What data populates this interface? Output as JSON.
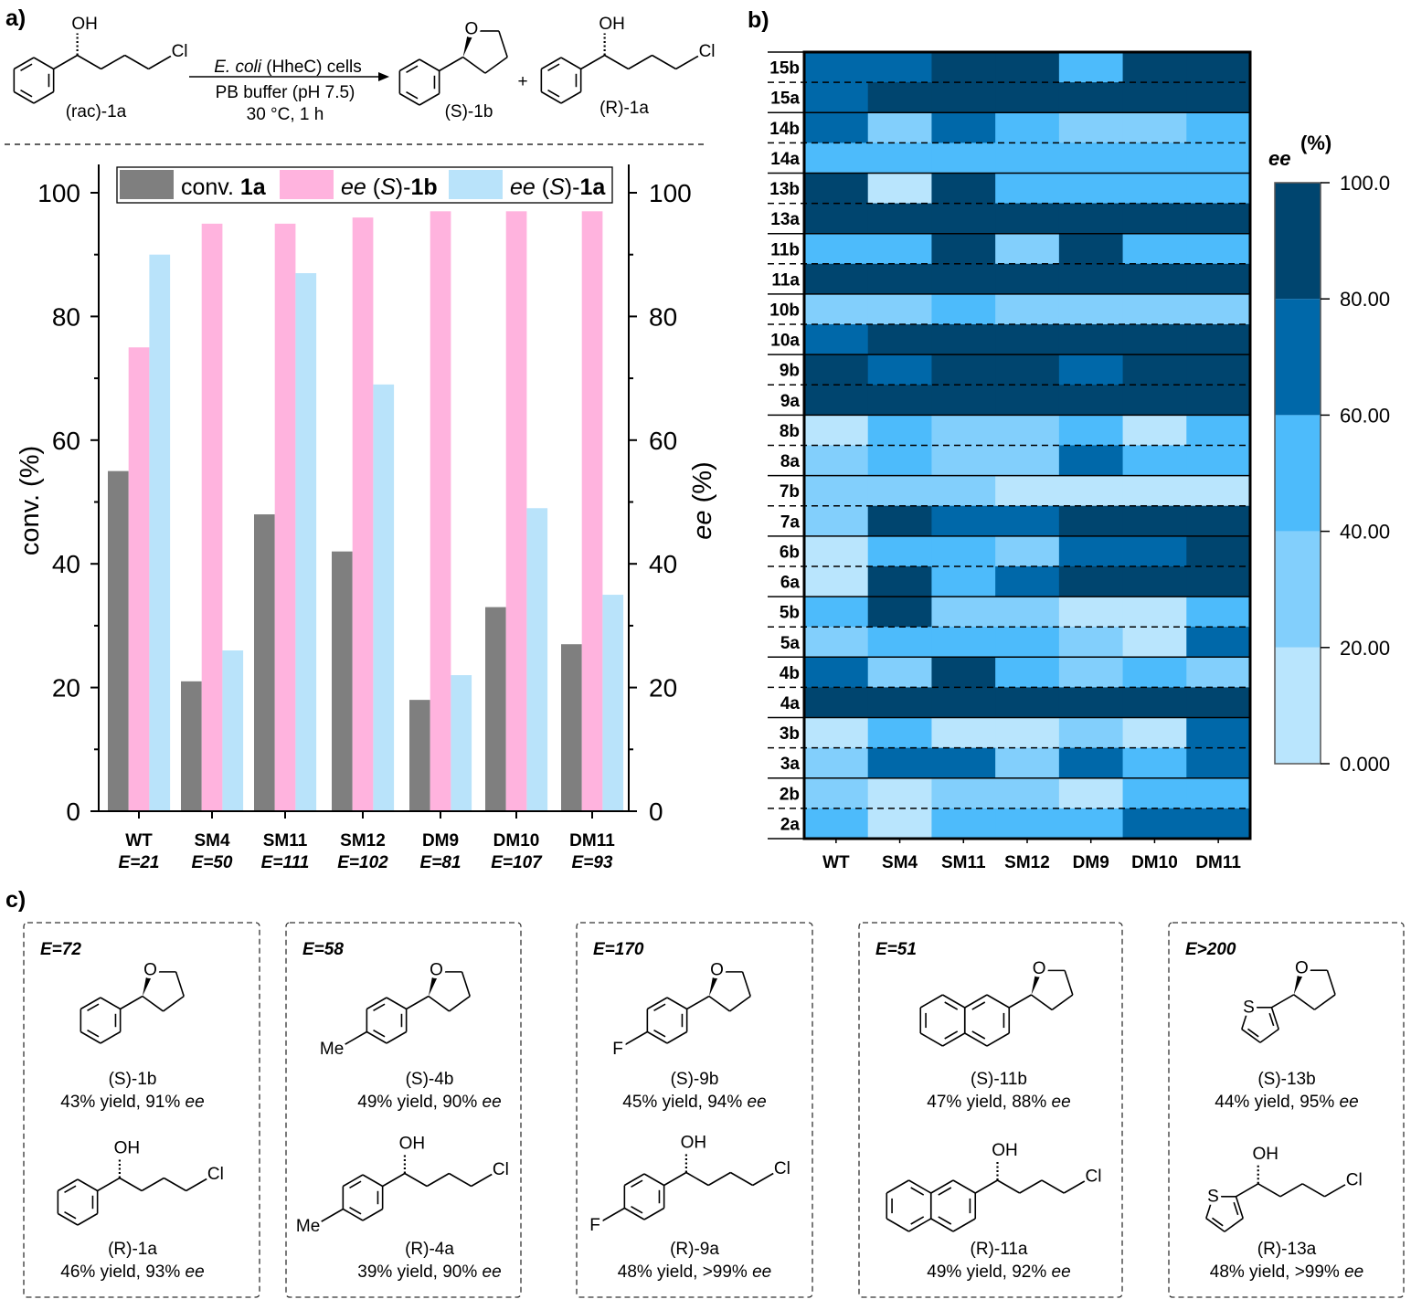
{
  "panel_labels": {
    "a": "a)",
    "b": "b)",
    "c": "c)"
  },
  "atoms": {
    "O": "O",
    "OH": "OH",
    "Cl": "Cl",
    "Me": "Me",
    "F": "F",
    "S": "S"
  },
  "scheme": {
    "conditions": [
      "E. coli (HheC) cells",
      "PB buffer (pH 7.5)",
      "30 °C, 1 h"
    ],
    "plus": "+",
    "substrate_label": "(rac)-1a",
    "product_label": "(S)-1b",
    "remaining_label": "(R)-1a"
  },
  "chart_data": [
    {
      "type": "bar",
      "categories": [
        "WT",
        "SM4",
        "SM11",
        "SM12",
        "DM9",
        "DM10",
        "DM11"
      ],
      "category_sublabels": [
        "E=21",
        "E=50",
        "E=111",
        "E=102",
        "E=81",
        "E=107",
        "E=93"
      ],
      "series": [
        {
          "name": "conv. 1a",
          "color": "#7f7f7f",
          "values": [
            55,
            21,
            48,
            42,
            18,
            33,
            27
          ]
        },
        {
          "name": "ee (S)-1b",
          "color": "#ffb3de",
          "values": [
            75,
            95,
            95,
            96,
            97,
            97,
            97
          ]
        },
        {
          "name": "ee (S)-1a",
          "color": "#b9e3fa",
          "values": [
            90,
            26,
            87,
            69,
            22,
            49,
            35
          ]
        }
      ],
      "ylabel": "conv. (%)",
      "y2label": "ee (%)",
      "ylim": [
        0,
        100
      ],
      "yticks": [
        "0",
        "20",
        "40",
        "60",
        "80",
        "100"
      ],
      "legend_position": "top",
      "grid": false
    },
    {
      "type": "heatmap",
      "rows": [
        "15b",
        "15a",
        "14b",
        "14a",
        "13b",
        "13a",
        "11b",
        "11a",
        "10b",
        "10a",
        "9b",
        "9a",
        "8b",
        "8a",
        "7b",
        "7a",
        "6b",
        "6a",
        "5b",
        "5a",
        "4b",
        "4a",
        "3b",
        "3a",
        "2b",
        "2a"
      ],
      "columns": [
        "WT",
        "SM4",
        "SM11",
        "SM12",
        "DM9",
        "DM10",
        "DM11"
      ],
      "value_bins_note": "bin index: 0=0-20, 1=20-40, 2=40-60, 3=60-80, 4=80-100 ee(%)",
      "bin_edges": [
        0,
        20,
        40,
        60,
        80,
        100
      ],
      "bin_colors": [
        "#b9e5fd",
        "#82cffc",
        "#4dbbfb",
        "#0068a9",
        "#00456f"
      ],
      "values": [
        [
          3,
          3,
          4,
          4,
          2,
          4,
          4
        ],
        [
          3,
          4,
          4,
          4,
          4,
          4,
          4
        ],
        [
          3,
          1,
          3,
          2,
          1,
          1,
          2
        ],
        [
          2,
          2,
          2,
          2,
          2,
          2,
          2
        ],
        [
          4,
          0,
          4,
          2,
          2,
          2,
          2
        ],
        [
          4,
          4,
          4,
          4,
          4,
          4,
          4
        ],
        [
          2,
          2,
          4,
          1,
          4,
          2,
          2
        ],
        [
          4,
          4,
          4,
          4,
          4,
          4,
          4
        ],
        [
          1,
          1,
          2,
          1,
          1,
          1,
          1
        ],
        [
          3,
          4,
          4,
          4,
          4,
          4,
          4
        ],
        [
          4,
          3,
          4,
          4,
          3,
          4,
          4
        ],
        [
          4,
          4,
          4,
          4,
          4,
          4,
          4
        ],
        [
          0,
          2,
          1,
          1,
          2,
          0,
          2
        ],
        [
          1,
          2,
          1,
          1,
          3,
          2,
          2
        ],
        [
          1,
          1,
          1,
          0,
          0,
          0,
          0
        ],
        [
          1,
          4,
          3,
          3,
          4,
          4,
          4
        ],
        [
          0,
          2,
          2,
          1,
          3,
          3,
          4
        ],
        [
          0,
          4,
          2,
          3,
          4,
          4,
          4
        ],
        [
          2,
          4,
          1,
          1,
          0,
          0,
          2
        ],
        [
          1,
          2,
          2,
          2,
          1,
          0,
          3
        ],
        [
          3,
          1,
          4,
          2,
          1,
          2,
          1
        ],
        [
          4,
          4,
          4,
          4,
          4,
          4,
          4
        ],
        [
          0,
          2,
          0,
          0,
          1,
          0,
          3
        ],
        [
          1,
          3,
          3,
          1,
          3,
          2,
          3
        ],
        [
          1,
          0,
          1,
          1,
          0,
          2,
          2
        ],
        [
          2,
          0,
          2,
          2,
          2,
          3,
          3
        ]
      ],
      "colorbar_title": "ee",
      "colorbar_unit": "(%)",
      "colorbar_ticks": [
        "0.000",
        "20.00",
        "40.00",
        "60.00",
        "80.00",
        "100.0"
      ]
    }
  ],
  "substrates": [
    {
      "E": "E=72",
      "aryl": "phenyl",
      "product": {
        "label": "(S)-1b",
        "result": "43% yield, 91% ee"
      },
      "remaining": {
        "label": "(R)-1a",
        "result": "46% yield, 93% ee"
      }
    },
    {
      "E": "E=58",
      "aryl": "p-tolyl",
      "product": {
        "label": "(S)-4b",
        "result": "49% yield, 90% ee"
      },
      "remaining": {
        "label": "(R)-4a",
        "result": "39% yield, 90% ee"
      }
    },
    {
      "E": "E=170",
      "aryl": "p-fluorophenyl",
      "product": {
        "label": "(S)-9b",
        "result": "45% yield, 94% ee"
      },
      "remaining": {
        "label": "(R)-9a",
        "result": "48% yield, >99% ee"
      }
    },
    {
      "E": "E=51",
      "aryl": "2-naphthyl",
      "product": {
        "label": "(S)-11b",
        "result": "47% yield, 88% ee"
      },
      "remaining": {
        "label": "(R)-11a",
        "result": "49% yield, 92% ee"
      }
    },
    {
      "E": "E>200",
      "aryl": "2-thienyl",
      "product": {
        "label": "(S)-13b",
        "result": "44% yield, 95% ee"
      },
      "remaining": {
        "label": "(R)-13a",
        "result": "48% yield, >99% ee"
      }
    }
  ]
}
